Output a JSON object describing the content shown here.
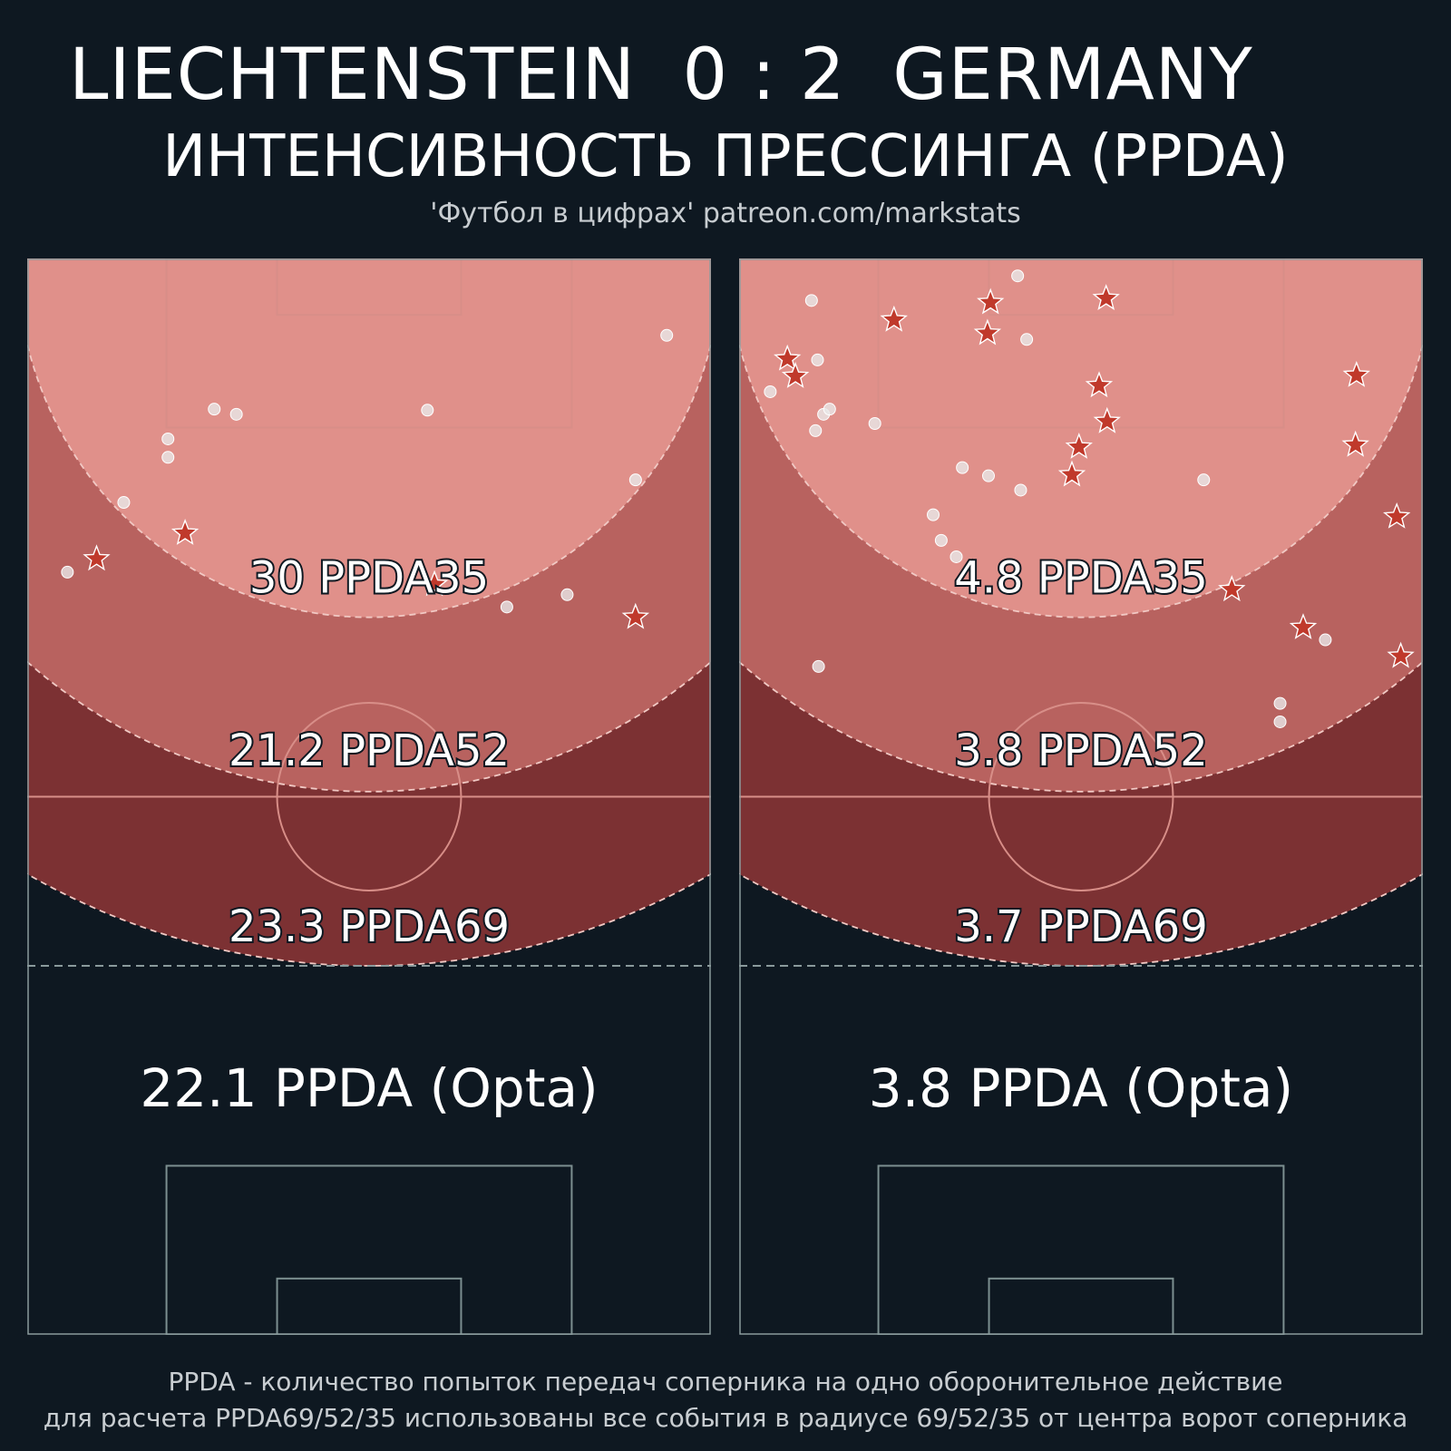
{
  "header": {
    "title": "LIECHTENSTEIN  0 : 2  GERMANY",
    "subtitle": "ИНТЕНСИВНОСТЬ ПРЕССИНГА (PPDA)",
    "source": "'Футбол в цифрах' patreon.com/markstats"
  },
  "footer": {
    "line1": "PPDA - количество попыток передач соперника на одно оборонительное действие",
    "line2": "для расчета PPDA69/52/35 использованы все события в радиусе 69/52/35 от центра ворот соперника"
  },
  "colors": {
    "background": "#0e1821",
    "zone35": "#e0908a",
    "zone52": "#b8625f",
    "zone69": "#7c3133",
    "marker_star": "#c0392b",
    "marker_dot": "#e8e8e8"
  },
  "chart_data": [
    {
      "type": "scatter",
      "team": "LIECHTENSTEIN",
      "pitch_length": 105,
      "pitch_width": 68,
      "zones": [
        {
          "radius": 35,
          "label": "30 PPDA35"
        },
        {
          "radius": 52,
          "label": "21.2 PPDA52"
        },
        {
          "radius": 69,
          "label": "23.3 PPDA69"
        }
      ],
      "opta_label": "22.1 PPDA (Opta)",
      "stars": [
        [
          6.9,
          75.7
        ],
        [
          15.7,
          78.2
        ],
        [
          60.5,
          70.0
        ],
        [
          40.5,
          73.2
        ]
      ],
      "dots": [
        [
          4.0,
          74.4
        ],
        [
          9.6,
          81.2
        ],
        [
          14.0,
          85.6
        ],
        [
          14.0,
          87.4
        ],
        [
          18.6,
          90.3
        ],
        [
          20.8,
          89.8
        ],
        [
          39.8,
          90.2
        ],
        [
          60.5,
          83.4
        ],
        [
          63.6,
          97.5
        ],
        [
          53.7,
          72.2
        ],
        [
          47.7,
          71.0
        ]
      ]
    },
    {
      "type": "scatter",
      "team": "GERMANY",
      "pitch_length": 105,
      "pitch_width": 68,
      "zones": [
        {
          "radius": 35,
          "label": "4.8 PPDA35"
        },
        {
          "radius": 52,
          "label": "3.8 PPDA52"
        },
        {
          "radius": 69,
          "label": "3.7 PPDA69"
        }
      ],
      "opta_label": "3.8 PPDA (Opta)",
      "stars": [
        [
          36.5,
          101.1
        ],
        [
          61.4,
          93.6
        ],
        [
          15.4,
          99.0
        ],
        [
          4.8,
          95.2
        ],
        [
          5.6,
          93.5
        ],
        [
          25.0,
          100.7
        ],
        [
          61.3,
          86.8
        ],
        [
          24.7,
          97.7
        ],
        [
          35.8,
          92.6
        ],
        [
          36.6,
          89.1
        ],
        [
          33.8,
          86.6
        ],
        [
          33.1,
          83.9
        ],
        [
          65.4,
          79.8
        ],
        [
          49.0,
          72.7
        ],
        [
          56.1,
          69.0
        ],
        [
          65.8,
          66.2
        ]
      ],
      "dots": [
        [
          27.7,
          103.3
        ],
        [
          7.2,
          100.9
        ],
        [
          28.6,
          97.1
        ],
        [
          7.8,
          95.1
        ],
        [
          3.1,
          92.0
        ],
        [
          8.4,
          89.8
        ],
        [
          9.0,
          90.3
        ],
        [
          7.6,
          88.2
        ],
        [
          13.5,
          88.9
        ],
        [
          22.2,
          84.6
        ],
        [
          24.8,
          83.8
        ],
        [
          28.0,
          82.4
        ],
        [
          46.2,
          83.4
        ],
        [
          19.3,
          80.0
        ],
        [
          20.1,
          77.5
        ],
        [
          21.6,
          75.9
        ],
        [
          58.3,
          67.8
        ],
        [
          7.9,
          65.2
        ],
        [
          53.8,
          61.6
        ],
        [
          53.8,
          59.8
        ]
      ]
    }
  ]
}
